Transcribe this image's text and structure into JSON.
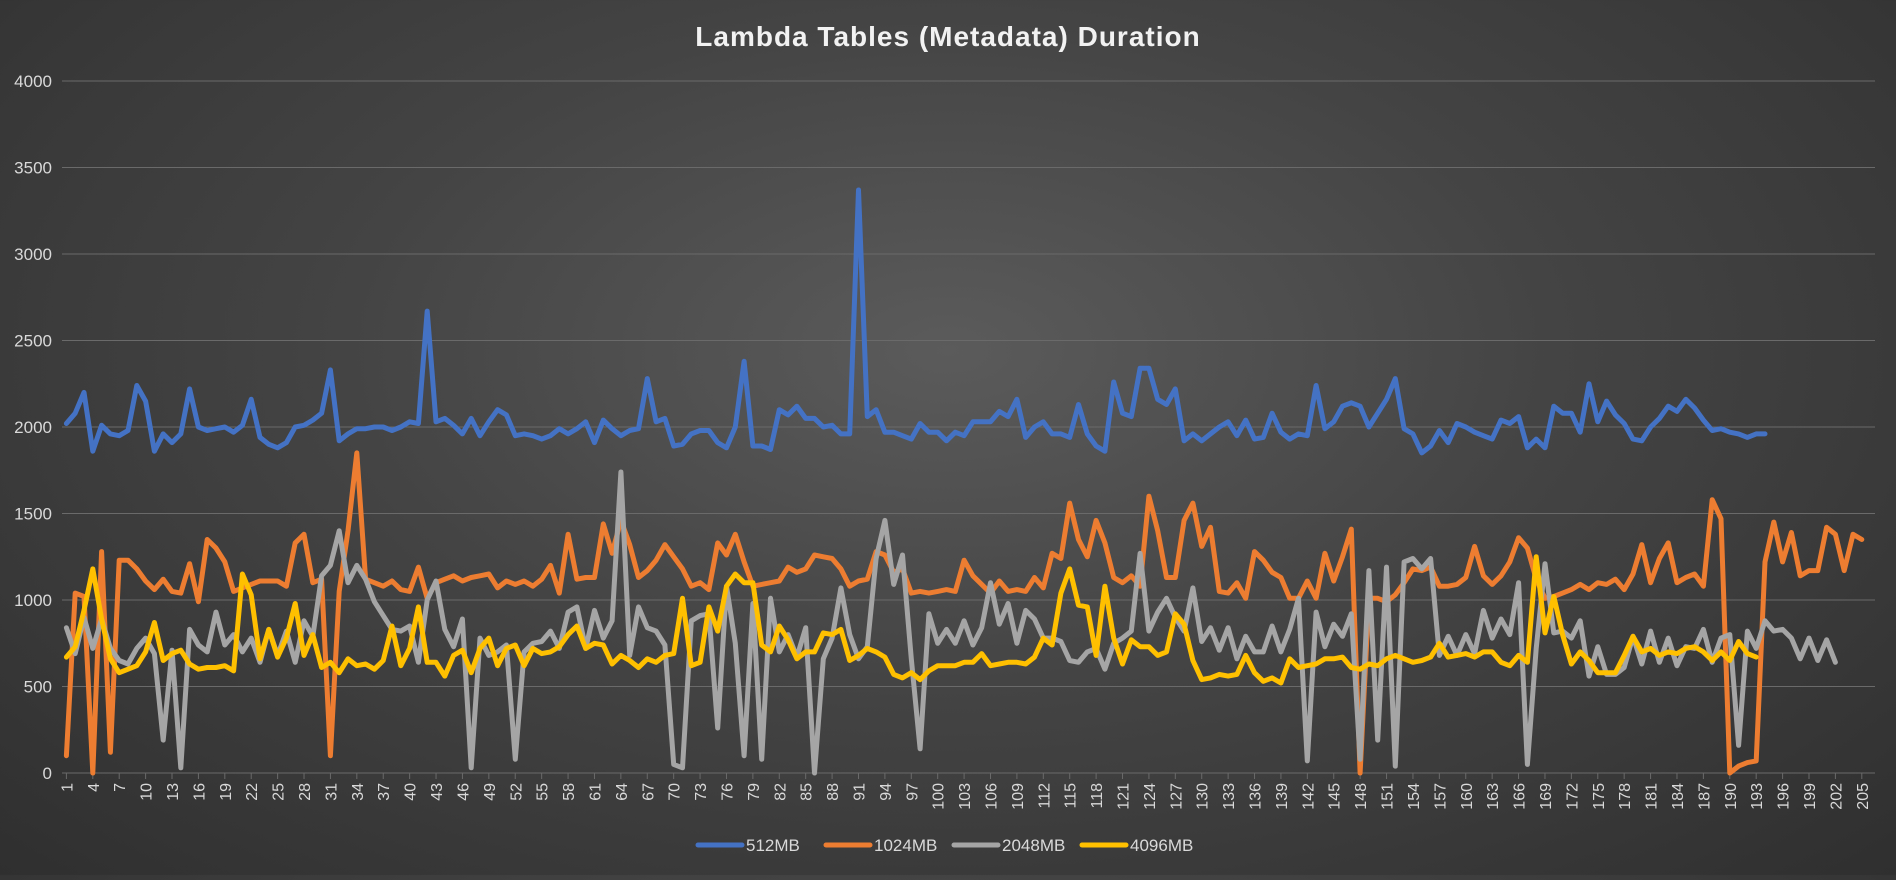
{
  "colors": {
    "512MB": "#4472c4",
    "1024MB": "#ed7d31",
    "2048MB": "#a5a5a5",
    "4096MB": "#ffc000",
    "grid": "#6a6a6a",
    "text": "#d9d9d9",
    "title": "#f2f2f2"
  },
  "chart_data": {
    "type": "line",
    "title": "Lambda Tables (Metadata) Duration",
    "xlabel": "",
    "ylabel": "",
    "ylim": [
      0,
      4000
    ],
    "y_ticks": [
      0,
      500,
      1000,
      1500,
      2000,
      2500,
      3000,
      3500,
      4000
    ],
    "x_range": [
      1,
      206
    ],
    "x_tick_labels": [
      1,
      4,
      7,
      10,
      13,
      16,
      19,
      22,
      25,
      28,
      31,
      34,
      37,
      40,
      43,
      46,
      49,
      52,
      55,
      58,
      61,
      64,
      67,
      70,
      73,
      76,
      79,
      82,
      85,
      88,
      91,
      94,
      97,
      100,
      103,
      106,
      109,
      112,
      115,
      118,
      121,
      124,
      127,
      130,
      133,
      136,
      139,
      142,
      145,
      148,
      151,
      154,
      157,
      160,
      163,
      166,
      169,
      172,
      175,
      178,
      181,
      184,
      187,
      190,
      193,
      196,
      199,
      202,
      205
    ],
    "grid": true,
    "legend_position": "bottom",
    "series": [
      {
        "name": "512MB",
        "x_start": 1,
        "values": [
          2020,
          2080,
          2200,
          1860,
          2010,
          1960,
          1950,
          1980,
          2240,
          2150,
          1860,
          1960,
          1910,
          1960,
          2220,
          2000,
          1980,
          1990,
          2000,
          1970,
          2010,
          2160,
          1940,
          1900,
          1880,
          1910,
          2000,
          2010,
          2040,
          2080,
          2330,
          1920,
          1960,
          1990,
          1990,
          2000,
          2000,
          1980,
          2000,
          2030,
          2020,
          2670,
          2030,
          2050,
          2010,
          1960,
          2050,
          1950,
          2030,
          2100,
          2070,
          1950,
          1960,
          1950,
          1930,
          1950,
          1990,
          1960,
          1990,
          2030,
          1910,
          2040,
          1990,
          1950,
          1980,
          1990,
          2280,
          2030,
          2050,
          1890,
          1900,
          1960,
          1980,
          1980,
          1910,
          1880,
          2000,
          2380,
          1890,
          1890,
          1870,
          2100,
          2070,
          2120,
          2050,
          2050,
          2000,
          2010,
          1960,
          1960,
          3370,
          2060,
          2100,
          1970,
          1970,
          1950,
          1930,
          2020,
          1970,
          1970,
          1920,
          1970,
          1950,
          2030,
          2030,
          2030,
          2090,
          2060,
          2160,
          1940,
          2000,
          2030,
          1960,
          1960,
          1940,
          2130,
          1960,
          1890,
          1860,
          2260,
          2080,
          2060,
          2340,
          2340,
          2160,
          2130,
          2220,
          1920,
          1960,
          1920,
          1960,
          2000,
          2030,
          1950,
          2040,
          1930,
          1940,
          2080,
          1970,
          1930,
          1960,
          1950,
          2240,
          1990,
          2030,
          2120,
          2140,
          2120,
          2000,
          2080,
          2160,
          2280,
          1990,
          1960,
          1850,
          1890,
          1980,
          1910,
          2020,
          2000,
          1970,
          1950,
          1930,
          2040,
          2020,
          2060,
          1880,
          1930,
          1880,
          2120,
          2080,
          2080,
          1970,
          2250,
          2030,
          2150,
          2070,
          2020,
          1930,
          1920,
          2000,
          2050,
          2120,
          2090,
          2160,
          2110,
          2040,
          1980,
          1990,
          1970,
          1960,
          1940,
          1960,
          1960
        ]
      },
      {
        "name": "1024MB",
        "x_start": 1,
        "values": [
          100,
          1040,
          1020,
          0,
          1280,
          120,
          1230,
          1230,
          1180,
          1110,
          1060,
          1120,
          1050,
          1040,
          1210,
          990,
          1350,
          1300,
          1220,
          1050,
          1070,
          1090,
          1110,
          1110,
          1110,
          1080,
          1330,
          1380,
          1100,
          1120,
          100,
          1050,
          1400,
          1850,
          1120,
          1100,
          1080,
          1110,
          1060,
          1050,
          1190,
          1010,
          1100,
          1120,
          1140,
          1110,
          1130,
          1140,
          1150,
          1070,
          1110,
          1090,
          1110,
          1080,
          1120,
          1200,
          1040,
          1380,
          1120,
          1130,
          1130,
          1440,
          1270,
          1460,
          1320,
          1130,
          1170,
          1230,
          1320,
          1250,
          1180,
          1080,
          1100,
          1060,
          1330,
          1260,
          1380,
          1220,
          1080,
          1090,
          1100,
          1110,
          1190,
          1160,
          1180,
          1260,
          1250,
          1240,
          1180,
          1080,
          1110,
          1120,
          1280,
          1260,
          1160,
          1180,
          1040,
          1050,
          1040,
          1050,
          1060,
          1050,
          1230,
          1140,
          1090,
          1040,
          1110,
          1050,
          1060,
          1050,
          1130,
          1070,
          1270,
          1240,
          1560,
          1350,
          1250,
          1460,
          1330,
          1130,
          1100,
          1140,
          1080,
          1600,
          1400,
          1130,
          1130,
          1460,
          1560,
          1310,
          1420,
          1050,
          1040,
          1100,
          1010,
          1280,
          1230,
          1160,
          1130,
          1010,
          1010,
          1110,
          1010,
          1270,
          1110,
          1250,
          1410,
          0,
          1010,
          1010,
          990,
          1030,
          1100,
          1180,
          1170,
          1190,
          1080,
          1080,
          1090,
          1130,
          1310,
          1140,
          1090,
          1140,
          1220,
          1360,
          1300,
          1120,
          1010,
          1020,
          1040,
          1060,
          1090,
          1060,
          1100,
          1090,
          1120,
          1060,
          1150,
          1320,
          1100,
          1240,
          1330,
          1100,
          1130,
          1150,
          1080,
          1580,
          1470,
          0,
          40,
          60,
          70,
          1220,
          1450,
          1220,
          1390,
          1140,
          1170,
          1170,
          1420,
          1380,
          1170,
          1380,
          1350
        ]
      },
      {
        "name": "2048MB",
        "x_start": 1,
        "values": [
          840,
          690,
          900,
          720,
          890,
          720,
          650,
          630,
          720,
          780,
          690,
          190,
          710,
          30,
          830,
          740,
          700,
          930,
          740,
          800,
          700,
          780,
          640,
          830,
          680,
          820,
          640,
          880,
          790,
          1140,
          1200,
          1400,
          1100,
          1200,
          1120,
          990,
          910,
          830,
          820,
          850,
          640,
          1000,
          1110,
          830,
          730,
          890,
          30,
          780,
          680,
          700,
          740,
          80,
          700,
          750,
          760,
          820,
          720,
          930,
          960,
          720,
          940,
          780,
          880,
          1740,
          680,
          960,
          840,
          820,
          740,
          50,
          30,
          880,
          910,
          920,
          260,
          1080,
          750,
          100,
          980,
          80,
          1010,
          700,
          800,
          670,
          840,
          0,
          660,
          780,
          1070,
          800,
          660,
          730,
          1240,
          1460,
          1090,
          1260,
          660,
          140,
          920,
          750,
          830,
          750,
          880,
          740,
          840,
          1100,
          860,
          980,
          750,
          940,
          890,
          780,
          780,
          760,
          650,
          640,
          700,
          720,
          600,
          750,
          780,
          820,
          1270,
          820,
          930,
          1010,
          900,
          820,
          1070,
          760,
          840,
          710,
          840,
          660,
          790,
          700,
          700,
          850,
          700,
          830,
          1010,
          70,
          930,
          730,
          860,
          790,
          920,
          80,
          1170,
          190,
          1190,
          40,
          1220,
          1240,
          1180,
          1240,
          680,
          790,
          680,
          800,
          690,
          940,
          780,
          890,
          800,
          1100,
          50,
          720,
          1210,
          810,
          820,
          780,
          880,
          560,
          730,
          570,
          570,
          610,
          790,
          630,
          820,
          640,
          780,
          620,
          730,
          720,
          830,
          640,
          780,
          800,
          160,
          820,
          720,
          880,
          820,
          830,
          780,
          660,
          780,
          650,
          770,
          640
        ]
      },
      {
        "name": "4096MB",
        "x_start": 1,
        "values": [
          670,
          730,
          940,
          1180,
          890,
          660,
          580,
          600,
          620,
          700,
          870,
          650,
          690,
          710,
          630,
          600,
          610,
          610,
          620,
          590,
          1150,
          1030,
          660,
          830,
          670,
          780,
          980,
          680,
          800,
          610,
          640,
          580,
          660,
          620,
          630,
          600,
          650,
          850,
          620,
          720,
          960,
          640,
          640,
          560,
          680,
          710,
          580,
          720,
          780,
          620,
          720,
          740,
          620,
          720,
          690,
          700,
          730,
          800,
          850,
          720,
          750,
          740,
          630,
          680,
          650,
          610,
          660,
          640,
          680,
          690,
          1010,
          620,
          640,
          960,
          820,
          1080,
          1150,
          1100,
          1100,
          740,
          700,
          850,
          770,
          660,
          700,
          700,
          810,
          800,
          830,
          650,
          680,
          720,
          700,
          670,
          570,
          550,
          580,
          540,
          590,
          620,
          620,
          620,
          640,
          640,
          690,
          620,
          630,
          640,
          640,
          630,
          670,
          780,
          740,
          1040,
          1180,
          970,
          960,
          680,
          1080,
          780,
          630,
          770,
          730,
          730,
          680,
          700,
          920,
          860,
          650,
          540,
          550,
          570,
          560,
          570,
          680,
          580,
          530,
          550,
          520,
          660,
          610,
          620,
          630,
          660,
          660,
          670,
          610,
          600,
          630,
          620,
          660,
          680,
          660,
          640,
          650,
          670,
          750,
          670,
          680,
          690,
          670,
          700,
          700,
          640,
          620,
          680,
          640,
          1250,
          810,
          1020,
          800,
          630,
          700,
          650,
          580,
          580,
          580,
          680,
          790,
          700,
          720,
          680,
          700,
          690,
          720,
          730,
          700,
          650,
          700,
          650,
          760,
          690,
          670
        ]
      }
    ]
  }
}
